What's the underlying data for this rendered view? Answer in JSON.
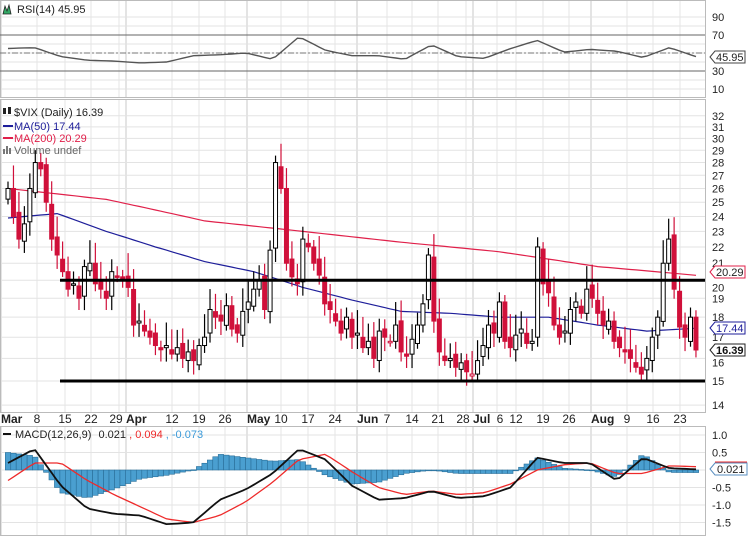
{
  "chart_data": [
    {
      "type": "line",
      "panel": "RSI",
      "title": "RSI(14) 45.95",
      "current_value_label": "45.95",
      "yticks": [
        "90",
        "70",
        "30",
        "10"
      ],
      "reference_lines": [
        70,
        50,
        30
      ],
      "ylim": [
        0,
        100
      ],
      "values": [
        55,
        56,
        46,
        42,
        41,
        39,
        40,
        47,
        48,
        50,
        43,
        68,
        53,
        47,
        47,
        43,
        59,
        46,
        44,
        55,
        64,
        51,
        54,
        52,
        45,
        56,
        45.95
      ],
      "line_color": "#555555"
    },
    {
      "type": "candlestick",
      "panel": "price",
      "title": "$VIX (Daily) 16.39",
      "scale": "log",
      "ylim": [
        13.6,
        33
      ],
      "yticks": [
        "14",
        "15",
        "16",
        "17",
        "18",
        "19",
        "20",
        "21",
        "22",
        "23",
        "24",
        "25",
        "26",
        "27",
        "28",
        "29",
        "30",
        "31",
        "32"
      ],
      "legend": [
        {
          "label": "MA(50) 17.44",
          "color": "#1e1e9a"
        },
        {
          "label": "MA(200) 20.29",
          "color": "#e0204a"
        },
        {
          "label": "Volume undef",
          "color": "#777777"
        }
      ],
      "close": [
        26,
        24,
        22.5,
        23.5,
        26,
        28,
        27.5,
        25,
        22.5,
        21.5,
        20.5,
        19.5,
        19.8,
        19.0,
        20.8,
        21,
        19.8,
        19.5,
        19.0,
        20.5,
        20.2,
        20.0,
        19.6,
        17.6,
        17.8,
        17.3,
        17.0,
        16.6,
        16.4,
        16.6,
        16.2,
        16.5,
        16.0,
        16.3,
        15.9,
        16.6,
        17.0,
        18.4,
        18.0,
        17.8,
        18.6,
        17.4,
        17.2,
        18.3,
        18.8,
        19.5,
        20.0,
        18.4,
        21.8,
        28.0,
        26.0,
        21.0,
        20.2,
        19.8,
        22.5,
        22.0,
        21.0,
        20.3,
        18.7,
        18.4,
        17.8,
        17.2,
        18.0,
        17.0,
        17.2,
        16.5,
        16.8,
        16.0,
        17.3,
        17.0,
        16.8,
        17.6,
        16.3,
        16.1,
        16.9,
        17.6,
        18.7,
        21.5,
        17.8,
        16.3,
        15.9,
        16.0,
        15.6,
        15.8,
        15.4,
        15.3,
        15.9,
        16.6,
        17.6,
        17.2,
        18.8,
        16.8,
        16.5,
        17.1,
        17.4,
        16.7,
        16.8,
        22.0,
        19.8,
        19.3,
        17.6,
        17.0,
        17.3,
        18.4,
        18.8,
        18.2,
        19.5,
        19.0,
        18.2,
        17.6,
        17.8,
        16.8,
        16.5,
        16.3,
        16.0,
        15.6,
        15.3,
        16.0,
        17.0,
        18.0,
        21.0,
        22.5,
        19.5,
        17.5,
        17.0,
        18.0,
        16.39
      ],
      "ma50": [
        23.9,
        24.2,
        23.0,
        22.0,
        21.1,
        20.5,
        19.6,
        18.9,
        18.3,
        18.2,
        18.0,
        18.0,
        17.6,
        17.3,
        17.44
      ],
      "ma200": [
        26.0,
        25.2,
        23.7,
        23.0,
        22.3,
        21.7,
        20.8,
        20.29
      ],
      "horizontal_lines": [
        20,
        15
      ],
      "value_labels": {
        "ma200": "20.29",
        "ma50": "17.44",
        "close": "16.39"
      },
      "colors": {
        "down": "#d0103a",
        "up": "#000000",
        "ma50": "#1e1e9a",
        "ma200": "#e0204a"
      }
    },
    {
      "type": "line+bar",
      "panel": "MACD",
      "title": "MACD(12,26,9)",
      "values_text": {
        "macd": "0.021",
        "signal": ", 0.094",
        "histogram": ", -0.073"
      },
      "yticks": [
        "1.0",
        "0.5",
        "-0.5",
        "-1.0",
        "-1.5"
      ],
      "ylim": [
        -1.8,
        1.1
      ],
      "macd": [
        0.2,
        0.6,
        -0.45,
        -1.1,
        -1.25,
        -1.3,
        -1.55,
        -1.5,
        -0.85,
        -0.55,
        -0.1,
        0.6,
        0.3,
        -0.45,
        -0.85,
        -0.8,
        -0.6,
        -0.8,
        -0.75,
        -0.5,
        0.35,
        0.2,
        0.2,
        -0.3,
        0.35,
        0.05,
        0.021
      ],
      "signal": [
        -0.3,
        0.2,
        0.2,
        -0.3,
        -0.7,
        -1.05,
        -1.4,
        -1.5,
        -1.3,
        -0.9,
        -0.35,
        0.3,
        0.45,
        -0.05,
        -0.5,
        -0.7,
        -0.6,
        -0.7,
        -0.65,
        -0.4,
        0.0,
        0.15,
        0.2,
        -0.1,
        -0.1,
        0.12,
        0.094
      ],
      "value_label": "0.021",
      "colors": {
        "macd": "#111111",
        "signal": "#ee2a2a",
        "histogram": "#4a9fd0"
      }
    }
  ],
  "x_axis": {
    "ticks": [
      "Mar",
      "8",
      "15",
      "22",
      "29",
      "Apr",
      "12",
      "19",
      "26",
      "May",
      "10",
      "17",
      "24",
      "Jun",
      "7",
      "14",
      "21",
      "28",
      "Jul",
      "6",
      "12",
      "19",
      "26",
      "Aug",
      "9",
      "16",
      "23"
    ],
    "month_labels": [
      "Mar",
      "Apr",
      "May",
      "Jun",
      "Jul",
      "Aug"
    ]
  }
}
